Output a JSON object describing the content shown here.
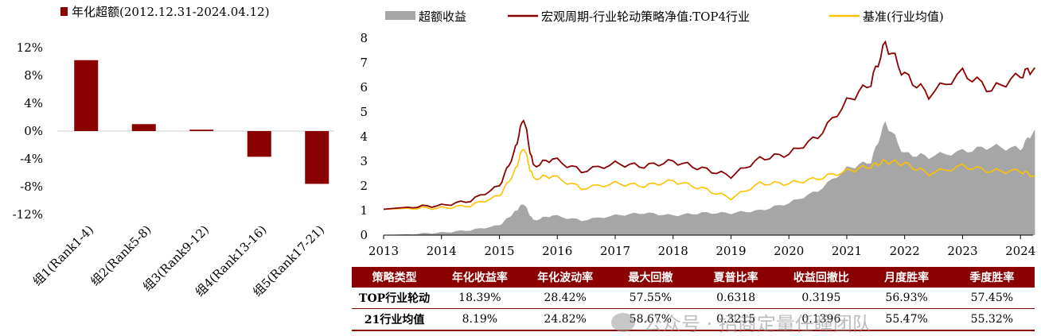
{
  "chart_data": [
    {
      "type": "bar",
      "legend": "年化超额(2012.12.31-2024.04.12)",
      "categories": [
        "组1(Rank1-4)",
        "组2(Rank5-8)",
        "组3(Rank9-12)",
        "组4(Rank13-16)",
        "组5(Rank17-21)"
      ],
      "values": [
        10.2,
        1.0,
        0.2,
        -3.7,
        -7.6
      ],
      "unit": "%",
      "ylim": [
        -12,
        12
      ],
      "yticks": [
        "12%",
        "8%",
        "4%",
        "0%",
        "-4%",
        "-8%",
        "-12%"
      ],
      "color": "#8b0000"
    },
    {
      "type": "line",
      "legend_position": "top",
      "ylim": [
        0,
        8
      ],
      "yticks": [
        "0",
        "1",
        "2",
        "3",
        "4",
        "5",
        "6",
        "7",
        "8"
      ],
      "xticks": [
        "2013",
        "2014",
        "2015",
        "2016",
        "2017",
        "2018",
        "2019",
        "2020",
        "2021",
        "2022",
        "2023",
        "2024"
      ],
      "series": [
        {
          "name": "超额收益",
          "kind": "area",
          "color": "#a6a6a6",
          "x": [
            "2013-01",
            "2013-07",
            "2014-01",
            "2014-07",
            "2015-01",
            "2015-04",
            "2015-06",
            "2015-08",
            "2015-12",
            "2016-06",
            "2017-01",
            "2017-07",
            "2018-01",
            "2018-07",
            "2019-01",
            "2019-07",
            "2020-01",
            "2020-07",
            "2021-01",
            "2021-06",
            "2021-09",
            "2022-01",
            "2022-06",
            "2023-01",
            "2023-07",
            "2024-01",
            "2024-04"
          ],
          "values": [
            0.0,
            0.05,
            0.1,
            0.2,
            0.4,
            0.9,
            1.3,
            0.6,
            0.8,
            0.6,
            0.8,
            0.9,
            0.8,
            0.9,
            0.9,
            1.0,
            1.3,
            1.8,
            2.7,
            3.0,
            4.6,
            3.3,
            3.2,
            3.4,
            3.6,
            3.5,
            4.3
          ]
        },
        {
          "name": "宏观周期-行业轮动策略净值:TOP4行业",
          "kind": "line",
          "color": "#8b0000",
          "x": [
            "2013-01",
            "2013-07",
            "2014-01",
            "2014-07",
            "2015-01",
            "2015-04",
            "2015-06",
            "2015-08",
            "2015-12",
            "2016-06",
            "2017-01",
            "2017-07",
            "2018-01",
            "2018-07",
            "2019-01",
            "2019-07",
            "2020-01",
            "2020-07",
            "2021-01",
            "2021-06",
            "2021-09",
            "2022-01",
            "2022-06",
            "2023-01",
            "2023-07",
            "2024-01",
            "2024-04"
          ],
          "values": [
            1.05,
            1.15,
            1.2,
            1.4,
            2.0,
            3.3,
            4.8,
            2.8,
            3.1,
            2.6,
            2.9,
            2.8,
            3.0,
            2.7,
            2.4,
            3.1,
            3.3,
            4.0,
            5.4,
            6.2,
            7.8,
            6.5,
            5.7,
            6.6,
            5.9,
            6.5,
            6.8
          ]
        },
        {
          "name": "基准(行业均值)",
          "kind": "line",
          "color": "#ffc000",
          "x": [
            "2013-01",
            "2013-07",
            "2014-01",
            "2014-07",
            "2015-01",
            "2015-04",
            "2015-06",
            "2015-08",
            "2015-12",
            "2016-06",
            "2017-01",
            "2017-07",
            "2018-01",
            "2018-07",
            "2019-01",
            "2019-07",
            "2020-01",
            "2020-07",
            "2021-01",
            "2021-06",
            "2021-09",
            "2022-01",
            "2022-06",
            "2023-01",
            "2023-07",
            "2024-01",
            "2024-04"
          ],
          "values": [
            1.05,
            1.1,
            1.1,
            1.2,
            1.6,
            2.5,
            3.6,
            2.3,
            2.4,
            1.9,
            2.1,
            2.0,
            2.2,
            1.9,
            1.5,
            2.1,
            2.1,
            2.3,
            2.6,
            2.8,
            3.0,
            2.9,
            2.5,
            2.8,
            2.6,
            2.6,
            2.4
          ]
        }
      ]
    }
  ],
  "table": {
    "headers": [
      "策略类型",
      "年化收益率",
      "年化波动率",
      "最大回撤",
      "夏普比率",
      "收益回撤比",
      "月度胜率",
      "季度胜率"
    ],
    "rows": [
      [
        "TOP行业轮动",
        "18.39%",
        "28.42%",
        "57.55%",
        "0.6318",
        "0.3195",
        "56.93%",
        "57.45%"
      ],
      [
        "21行业均值",
        "8.19%",
        "24.82%",
        "58.67%",
        "0.3215",
        "0.1396",
        "55.47%",
        "55.32%"
      ]
    ]
  },
  "watermark": "公众号 · 招商定量任瞳团队"
}
